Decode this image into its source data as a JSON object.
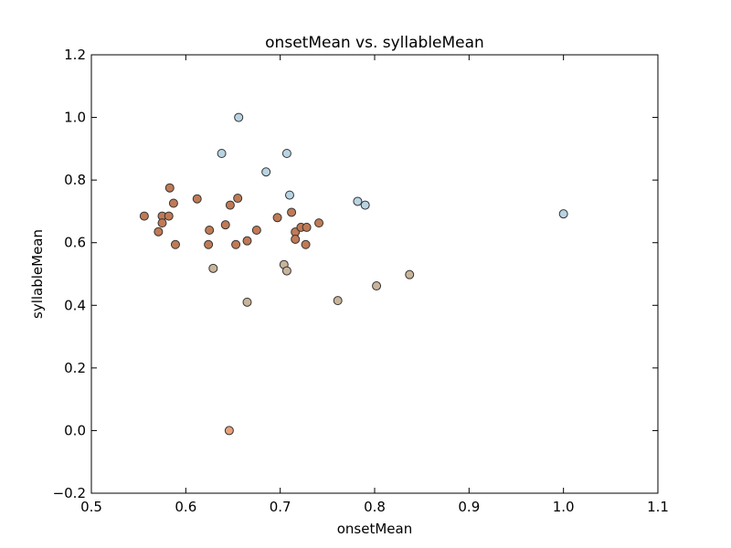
{
  "chart_data": {
    "type": "scatter",
    "title": "onsetMean vs. syllableMean",
    "xlabel": "onsetMean",
    "ylabel": "syllableMean",
    "xlim": [
      0.5,
      1.1
    ],
    "ylim": [
      -0.2,
      1.2
    ],
    "xticks": [
      "0.5",
      "0.6",
      "0.7",
      "0.8",
      "0.9",
      "1.0",
      "1.1"
    ],
    "yticks": [
      "−0.2",
      "0.0",
      "0.2",
      "0.4",
      "0.6",
      "0.8",
      "1.0",
      "1.2"
    ],
    "grid": false,
    "marker_edge_color": "#333333",
    "series": [
      {
        "color": "#b8d4e3",
        "points": [
          [
            0.656,
            1.0
          ],
          [
            0.638,
            0.885
          ],
          [
            0.707,
            0.885
          ],
          [
            0.685,
            0.826
          ],
          [
            0.71,
            0.752
          ],
          [
            0.782,
            0.732
          ],
          [
            0.79,
            0.72
          ],
          [
            1.0,
            0.692
          ]
        ]
      },
      {
        "color": "#c07a55",
        "points": [
          [
            0.583,
            0.775
          ],
          [
            0.612,
            0.74
          ],
          [
            0.655,
            0.742
          ],
          [
            0.647,
            0.72
          ],
          [
            0.587,
            0.726
          ],
          [
            0.556,
            0.685
          ],
          [
            0.575,
            0.685
          ],
          [
            0.582,
            0.685
          ],
          [
            0.575,
            0.663
          ],
          [
            0.571,
            0.635
          ],
          [
            0.589,
            0.594
          ],
          [
            0.624,
            0.594
          ],
          [
            0.625,
            0.64
          ],
          [
            0.642,
            0.657
          ],
          [
            0.653,
            0.594
          ],
          [
            0.665,
            0.606
          ],
          [
            0.675,
            0.64
          ],
          [
            0.697,
            0.68
          ],
          [
            0.712,
            0.697
          ],
          [
            0.716,
            0.634
          ],
          [
            0.722,
            0.649
          ],
          [
            0.728,
            0.649
          ],
          [
            0.741,
            0.663
          ],
          [
            0.716,
            0.611
          ],
          [
            0.727,
            0.594
          ]
        ]
      },
      {
        "color": "#c9b49a",
        "points": [
          [
            0.629,
            0.518
          ],
          [
            0.704,
            0.53
          ],
          [
            0.707,
            0.51
          ],
          [
            0.665,
            0.41
          ],
          [
            0.761,
            0.415
          ],
          [
            0.802,
            0.462
          ],
          [
            0.837,
            0.498
          ]
        ]
      },
      {
        "color": "#e8a07a",
        "points": [
          [
            0.646,
            0.0
          ]
        ]
      }
    ]
  }
}
